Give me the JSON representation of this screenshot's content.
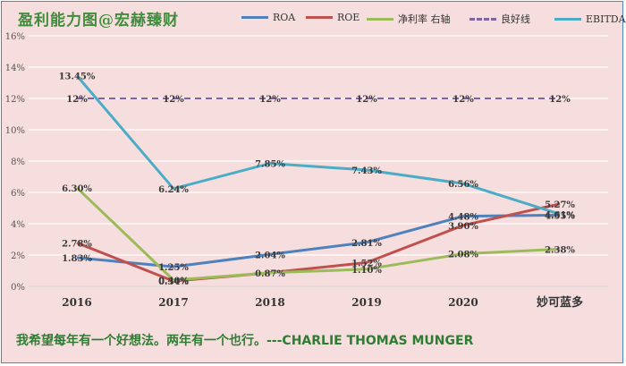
{
  "title": "盈利能力图@宏赫臻财",
  "quote": "我希望每年有一个好想法。两年有一个也行。---CHARLIE THOMAS MUNGER",
  "chart_data": {
    "type": "line",
    "categories": [
      "2016",
      "2017",
      "2018",
      "2019",
      "2020",
      "妙可蓝多"
    ],
    "y_ticks": [
      "0%",
      "2%",
      "4%",
      "6%",
      "8%",
      "10%",
      "12%",
      "14%",
      "16%"
    ],
    "ylim": [
      0,
      16
    ],
    "grid": true,
    "legend_position": "top",
    "series": [
      {
        "name": "ROA",
        "color": "#4f81bd",
        "dashed": false,
        "values": [
          1.83,
          1.25,
          2.04,
          2.81,
          4.48,
          4.55
        ],
        "labels": [
          "1.83%",
          "1.25%",
          "2.04%",
          "2.81%",
          "4.48%",
          "4.55%"
        ]
      },
      {
        "name": "ROE",
        "color": "#c0504d",
        "dashed": false,
        "values": [
          2.78,
          0.34,
          0.87,
          1.52,
          3.9,
          5.27
        ],
        "labels": [
          "2.78%",
          "0.34%",
          "0.87%",
          "1.52%",
          "3.90%",
          "5.27%"
        ]
      },
      {
        "name": "净利率 右轴",
        "color": "#9bbb59",
        "dashed": false,
        "values": [
          6.3,
          0.4,
          0.87,
          1.1,
          2.08,
          2.38
        ],
        "labels": [
          "6.30%",
          "0.40%",
          "",
          "1.10%",
          "2.08%",
          "2.38%"
        ]
      },
      {
        "name": "良好线",
        "color": "#8064a2",
        "dashed": true,
        "values": [
          12,
          12,
          12,
          12,
          12,
          12
        ],
        "labels": [
          "12%",
          "12%",
          "12%",
          "12%",
          "12%",
          "12%"
        ]
      },
      {
        "name": "EBITDA/营收",
        "color": "#4bacc6",
        "dashed": false,
        "values": [
          13.45,
          6.24,
          7.85,
          7.43,
          6.56,
          4.61
        ],
        "labels": [
          "13.45%",
          "6.24%",
          "7.85%",
          "7.43%",
          "6.56%",
          "4.61%"
        ]
      }
    ]
  }
}
